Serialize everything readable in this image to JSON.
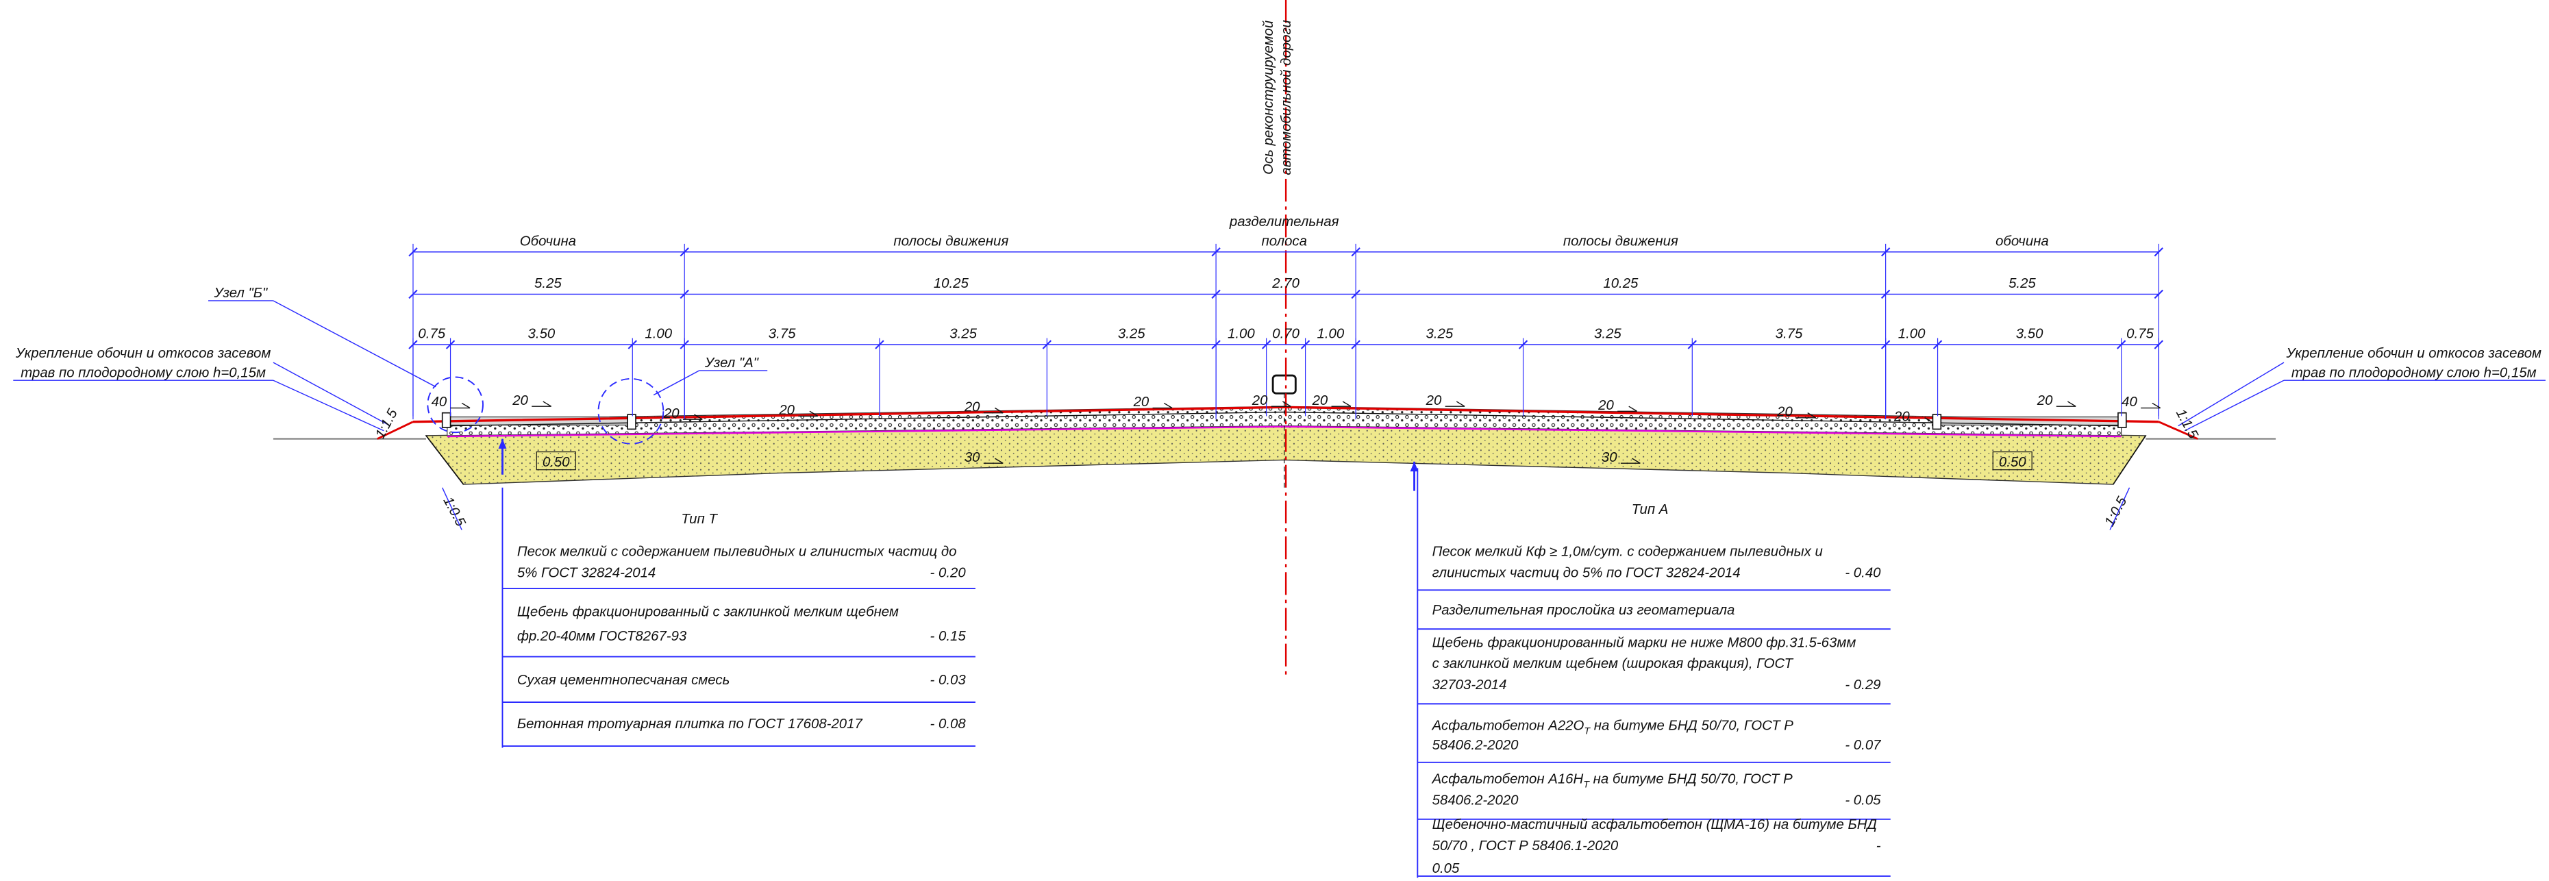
{
  "axis_label": [
    "Ось реконструируемой",
    "автомобильной дороги"
  ],
  "median_label": [
    "разделительная",
    "полоса"
  ],
  "zones": [
    "Обочина",
    "полосы движения",
    "полосы движения",
    "обочина"
  ],
  "zone_widths": [
    "5.25",
    "10.25",
    "2.70",
    "10.25",
    "5.25"
  ],
  "element_widths": [
    "0.75",
    "3.50",
    "1.00",
    "3.75",
    "3.25",
    "3.25",
    "1.00",
    "0.70",
    "1.00",
    "3.25",
    "3.25",
    "3.75",
    "1.00",
    "3.50",
    "0.75"
  ],
  "nodes": [
    "Узел \"Б\"",
    "Узел \"А\""
  ],
  "reinforcement_left": [
    "Укрепление обочин и откосов засевом",
    "трав по плодородному слою h=0,15м"
  ],
  "reinforcement_right": [
    "Укрепление обочин и откосов засевом",
    "трав по плодородному слою h=0,15м"
  ],
  "slopes": [
    "1:1.5",
    "1:0.5",
    "1:1.5",
    "1:0.5"
  ],
  "gradients": [
    "40",
    "20",
    "20",
    "20",
    "20",
    "20",
    "20",
    "20",
    "20",
    "20",
    "20",
    "20",
    "20",
    "40",
    "30",
    "30"
  ],
  "layer_widths": [
    "0.50",
    "0.50"
  ],
  "type_left": {
    "title": "Тип Т",
    "rows": [
      {
        "lines": [
          "Песок мелкий с содержанием пылевидных и глинистых частиц до",
          "5% ГОСТ 32824-2014"
        ],
        "value": "- 0.20"
      },
      {
        "lines": [
          "Щебень фракционированный с заклинкой мелким щебнем",
          "фр.20-40мм   ГОСТ8267-93"
        ],
        "value": "- 0.15"
      },
      {
        "lines": [
          "Сухая цементнопесчаная смесь"
        ],
        "value": "- 0.03"
      },
      {
        "lines": [
          "Бетонная тротуарная плитка по ГОСТ 17608-2017"
        ],
        "value": "- 0.08"
      }
    ]
  },
  "type_right": {
    "title": "Тип А",
    "rows": [
      {
        "lines": [
          "Песок мелкий Кф  ≥ 1,0м/сут.  с содержанием пылевидных и",
          "глинистых частиц до 5% по ГОСТ 32824-2014"
        ],
        "value": "- 0.40"
      },
      {
        "lines": [
          "Разделительная прослойка из геоматериала"
        ]
      },
      {
        "lines": [
          "Щебень фракционированный марки не ниже  М800 фр.31.5-63мм",
          "с заклинкой мелким щебнем (широкая фракция),   ГОСТ",
          "32703-2014"
        ],
        "value": "- 0.29"
      },
      {
        "lines": [
          [
            "Асфальтобетон А22О",
            "Т",
            "  на битуме БНД 50/70, ГОСТ Р"
          ],
          "58406.2-2020"
        ],
        "value": "- 0.07"
      },
      {
        "lines": [
          [
            "Асфальтобетон А16Н",
            "Т",
            "  на битуме БНД 50/70, ГОСТ Р"
          ],
          "58406.2-2020"
        ],
        "value": "- 0.05"
      },
      {
        "lines": [
          "Щебеночно-мастичный асфальтобетон (ЩМА-16)  на битуме БНД",
          "50/70 , ГОСТ Р 58406.1-2020",
          "0.05"
        ],
        "value": "-"
      }
    ]
  }
}
